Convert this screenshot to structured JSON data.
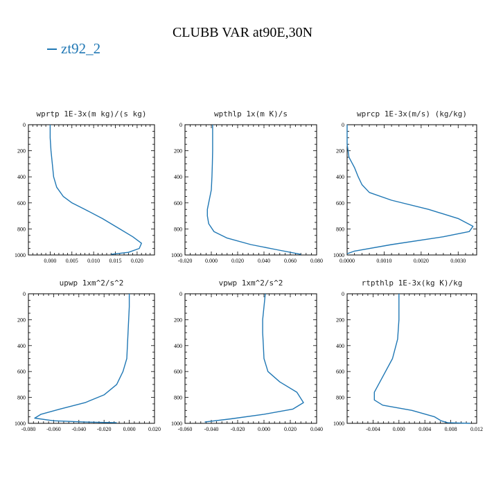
{
  "figure": {
    "title": "CLUBB VAR at90E,30N",
    "legend_label": "zt92_2",
    "legend_color": "#1f77b4",
    "line_color": "#1f77b4"
  },
  "chart_data": [
    {
      "type": "line",
      "title": "wprtp   1E-3x(m kg)/(s kg)",
      "xlim": [
        -0.005,
        0.024
      ],
      "ylim": [
        1000,
        0
      ],
      "xticks": [
        0.0,
        0.005,
        0.01,
        0.015,
        0.02
      ],
      "xtick_labels": [
        "0.000",
        "0.005",
        "0.010",
        "0.015",
        "0.020"
      ],
      "yticks": [
        0,
        200,
        400,
        600,
        800,
        1000
      ],
      "ytick_labels": [
        "0",
        "200",
        "400",
        "600",
        "800",
        "1000"
      ],
      "series": [
        {
          "name": "zt92_2",
          "x": [
            0.0,
            0.0,
            0.0002,
            0.0005,
            0.0008,
            0.0015,
            0.003,
            0.005,
            0.008,
            0.012,
            0.016,
            0.019,
            0.021,
            0.0205,
            0.018,
            0.014
          ],
          "y": [
            0,
            100,
            200,
            300,
            400,
            480,
            550,
            600,
            650,
            720,
            800,
            860,
            910,
            950,
            980,
            995
          ]
        }
      ]
    },
    {
      "type": "line",
      "title": "wpthlp   1x(m K)/s",
      "xlim": [
        -0.02,
        0.08
      ],
      "ylim": [
        1000,
        0
      ],
      "xticks": [
        -0.02,
        0.0,
        0.02,
        0.04,
        0.06,
        0.08
      ],
      "xtick_labels": [
        "-0.020",
        "0.000",
        "0.020",
        "0.040",
        "0.060",
        "0.080"
      ],
      "yticks": [
        0,
        200,
        400,
        600,
        800,
        1000
      ],
      "ytick_labels": [
        "0",
        "200",
        "400",
        "600",
        "800",
        "1000"
      ],
      "series": [
        {
          "name": "zt92_2",
          "x": [
            0.001,
            0.001,
            0.001,
            0.0008,
            0.0005,
            0.0,
            -0.002,
            -0.003,
            -0.003,
            -0.002,
            0.002,
            0.012,
            0.03,
            0.05,
            0.068
          ],
          "y": [
            0,
            100,
            200,
            300,
            400,
            500,
            600,
            650,
            700,
            760,
            820,
            870,
            920,
            960,
            995
          ]
        }
      ]
    },
    {
      "type": "line",
      "title": "wprcp   1E-3x(m/s) (kg/kg)",
      "xlim": [
        0.0,
        0.0035
      ],
      "ylim": [
        1000,
        0
      ],
      "xticks": [
        0.0,
        0.001,
        0.002,
        0.003
      ],
      "xtick_labels": [
        "0.0000",
        "0.0010",
        "0.0020",
        "0.0030"
      ],
      "yticks": [
        0,
        200,
        400,
        600,
        800,
        1000
      ],
      "ytick_labels": [
        "0",
        "200",
        "400",
        "600",
        "800",
        "1000"
      ],
      "series": [
        {
          "name": "zt92_2",
          "x": [
            0.0,
            0.0,
            5e-05,
            0.0002,
            0.0003,
            0.0004,
            0.0006,
            0.0012,
            0.0022,
            0.003,
            0.0034,
            0.0033,
            0.0026,
            0.0012,
            0.0002,
            0.0
          ],
          "y": [
            0,
            150,
            250,
            330,
            400,
            460,
            520,
            580,
            650,
            720,
            780,
            820,
            860,
            920,
            970,
            990
          ]
        }
      ]
    },
    {
      "type": "line",
      "title": "upwp   1xm^2/s^2",
      "xlim": [
        -0.08,
        0.02
      ],
      "ylim": [
        1000,
        0
      ],
      "xticks": [
        -0.08,
        -0.06,
        -0.04,
        -0.02,
        0.0,
        0.02
      ],
      "xtick_labels": [
        "-0.080",
        "-0.060",
        "-0.040",
        "-0.020",
        "0.000",
        "0.020"
      ],
      "yticks": [
        0,
        200,
        400,
        600,
        800,
        1000
      ],
      "ytick_labels": [
        "0",
        "200",
        "400",
        "600",
        "800",
        "1000"
      ],
      "series": [
        {
          "name": "zt92_2",
          "x": [
            0.0,
            0.0,
            -0.0005,
            -0.001,
            -0.0015,
            -0.002,
            -0.005,
            -0.01,
            -0.02,
            -0.035,
            -0.055,
            -0.07,
            -0.075,
            -0.06,
            -0.035,
            -0.01
          ],
          "y": [
            0,
            100,
            200,
            300,
            400,
            500,
            600,
            700,
            780,
            840,
            890,
            930,
            960,
            980,
            990,
            995
          ]
        }
      ]
    },
    {
      "type": "line",
      "title": "vpwp   1xm^2/s^2",
      "xlim": [
        -0.06,
        0.04
      ],
      "ylim": [
        1000,
        0
      ],
      "xticks": [
        -0.06,
        -0.04,
        -0.02,
        0.0,
        0.02,
        0.04
      ],
      "xtick_labels": [
        "-0.060",
        "-0.040",
        "-0.020",
        "0.000",
        "0.020",
        "0.040"
      ],
      "yticks": [
        0,
        200,
        400,
        600,
        800,
        1000
      ],
      "ytick_labels": [
        "0",
        "200",
        "400",
        "600",
        "800",
        "1000"
      ],
      "series": [
        {
          "name": "zt92_2",
          "x": [
            0.001,
            0.0,
            -0.001,
            -0.001,
            -0.0005,
            0.0,
            0.003,
            0.012,
            0.025,
            0.03,
            0.022,
            0.0,
            -0.025,
            -0.045
          ],
          "y": [
            0,
            100,
            200,
            300,
            400,
            500,
            600,
            680,
            760,
            840,
            890,
            930,
            965,
            990
          ]
        }
      ]
    },
    {
      "type": "line",
      "title": "rtpthlp   1E-3x(kg K)/kg",
      "xlim": [
        -0.008,
        0.012
      ],
      "ylim": [
        1000,
        0
      ],
      "xticks": [
        -0.004,
        0.0,
        0.004,
        0.008,
        0.012
      ],
      "xtick_labels": [
        "-0.004",
        "0.000",
        "0.004",
        "0.008",
        "0.012"
      ],
      "yticks": [
        0,
        200,
        400,
        600,
        800,
        1000
      ],
      "ytick_labels": [
        "0",
        "200",
        "400",
        "600",
        "800",
        "1000"
      ],
      "series": [
        {
          "name": "zt92_2",
          "x": [
            0.0,
            0.0,
            0.0,
            -0.0002,
            -0.001,
            -0.0025,
            -0.0038,
            -0.0038,
            -0.0025,
            0.002,
            0.0055,
            0.0065,
            0.0075,
            0.011
          ],
          "y": [
            0,
            100,
            200,
            350,
            500,
            640,
            760,
            820,
            860,
            900,
            950,
            980,
            995,
            1000
          ]
        }
      ]
    }
  ]
}
